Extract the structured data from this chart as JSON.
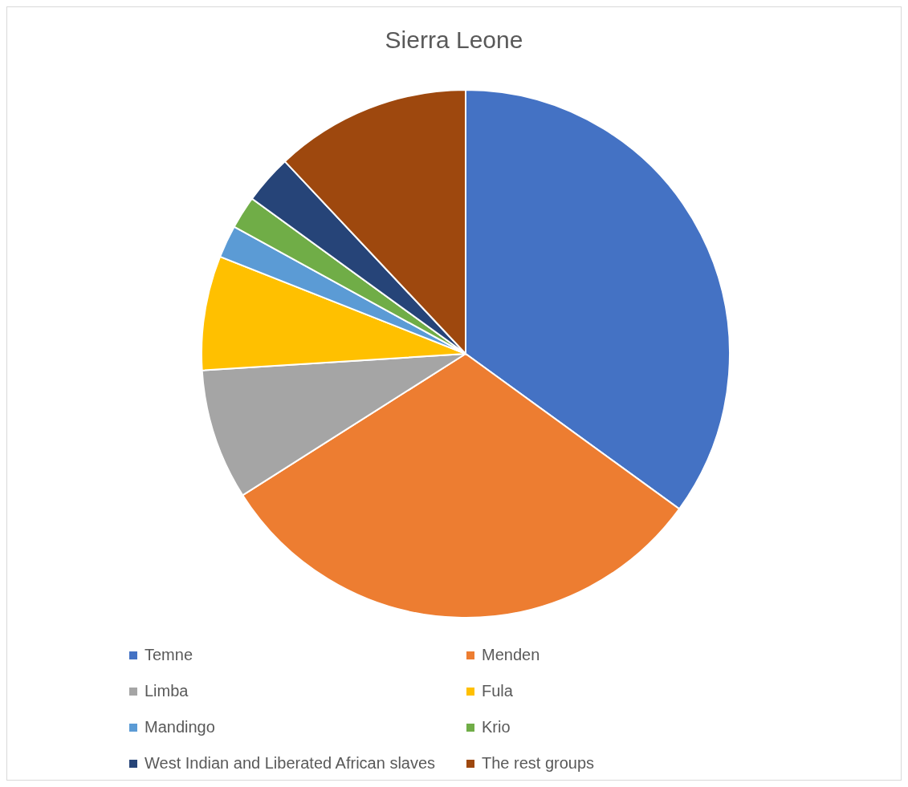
{
  "chart_data": {
    "type": "pie",
    "title": "Sierra Leone",
    "categories": [
      "Temne",
      "Menden",
      "Limba",
      "Fula",
      "Mandingo",
      "Krio",
      "West Indian and Liberated African slaves",
      "The rest groups"
    ],
    "values": [
      35,
      31,
      8,
      7,
      2,
      2,
      3,
      12
    ],
    "colors": [
      "#4472c4",
      "#ed7d31",
      "#a5a5a5",
      "#ffc000",
      "#5b9bd5",
      "#70ad47",
      "#264478",
      "#9e480e"
    ],
    "legend": "bottom"
  }
}
